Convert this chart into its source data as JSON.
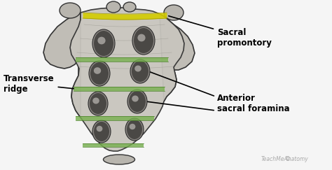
{
  "background_color": "#f5f5f5",
  "dpi": 100,
  "figsize": [
    4.74,
    2.43
  ],
  "labels": {
    "sacral_promontory": "Sacral\npromontory",
    "transverse_ridge": "Transverse\nridge",
    "anterior_sacral_foramina": "Anterior\nsacral foramina"
  },
  "font_size": 8.5,
  "font_weight": "bold",
  "watermark": "TeachMeAnatomy",
  "watermark_color": "#aaaaaa",
  "line_color": "#000000",
  "yellow_color": "#d4cc00",
  "green_color": "#78b050",
  "bone_fill": "#c8c4bc",
  "bone_edge": "#444444",
  "bone_shadow": "#a09890"
}
